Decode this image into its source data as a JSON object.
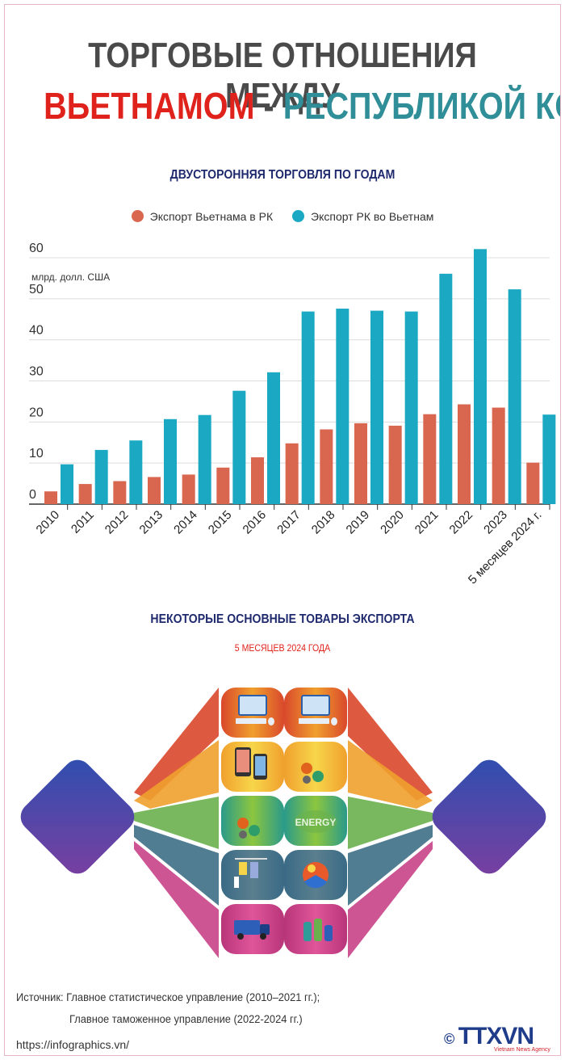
{
  "header": {
    "title_line1": "ТОРГОВЫЕ ОТНОШЕНИЯ МЕЖДУ",
    "title_part_red": "ВЬЕТНАМОМ",
    "title_dash": " - ",
    "title_part_teal": "РЕСПУБЛИКОЙ КОРЕЯ"
  },
  "chart_data": {
    "type": "bar",
    "title": "ДВУСТОРОННЯЯ ТОРГОВЛЯ ПО ГОДАМ",
    "ylabel": "млрд. долл. США",
    "ylim": [
      0,
      60
    ],
    "yticks": [
      0,
      10,
      20,
      30,
      40,
      50,
      60
    ],
    "categories": [
      "2010",
      "2011",
      "2012",
      "2013",
      "2014",
      "2015",
      "2016",
      "2017",
      "2018",
      "2019",
      "2020",
      "2021",
      "2022",
      "2023",
      "5 месяцев 2024 г."
    ],
    "series": [
      {
        "name": "Экспорт Вьетнама в РК",
        "color": "#d9664f",
        "values": [
          3.1,
          4.9,
          5.6,
          6.6,
          7.2,
          8.9,
          11.4,
          14.8,
          18.2,
          19.7,
          19.1,
          21.9,
          24.3,
          23.5,
          10.1
        ]
      },
      {
        "name": "Экспорт РК во Вьетнам",
        "color": "#1aa8c2",
        "values": [
          9.7,
          13.2,
          15.5,
          20.7,
          21.7,
          27.6,
          32.1,
          46.9,
          47.6,
          47.1,
          46.9,
          56.1,
          62.1,
          52.3,
          21.8
        ]
      }
    ],
    "grid": true,
    "legend": "top-center"
  },
  "goods": {
    "title": "НЕКОТОРЫЕ ОСНОВНЫЕ ТОВАРЫ ЭКСПОРТА",
    "subtitle": "5 МЕСЯЦЕВ 2024 ГОДА",
    "left_icons": [
      "computer-icon",
      "smartphone-icon",
      "machinery-icon",
      "textile-icon",
      "truck-icon"
    ],
    "right_icons": [
      "computer-icon",
      "machinery-icon",
      "energy-icon",
      "plastics-icon",
      "chemicals-icon"
    ],
    "energy_word": "ENERGY"
  },
  "footer": {
    "source_line1": "Источник: Главное статистическое управление (2010–2021 гг.);",
    "source_line2": "Главное таможенное управление (2022-2024 гг.)",
    "url": "https://infographics.vn/",
    "logo_symbol": "©",
    "logo_text": "TTXVN",
    "logo_sub": "Vietnam News Agency"
  }
}
